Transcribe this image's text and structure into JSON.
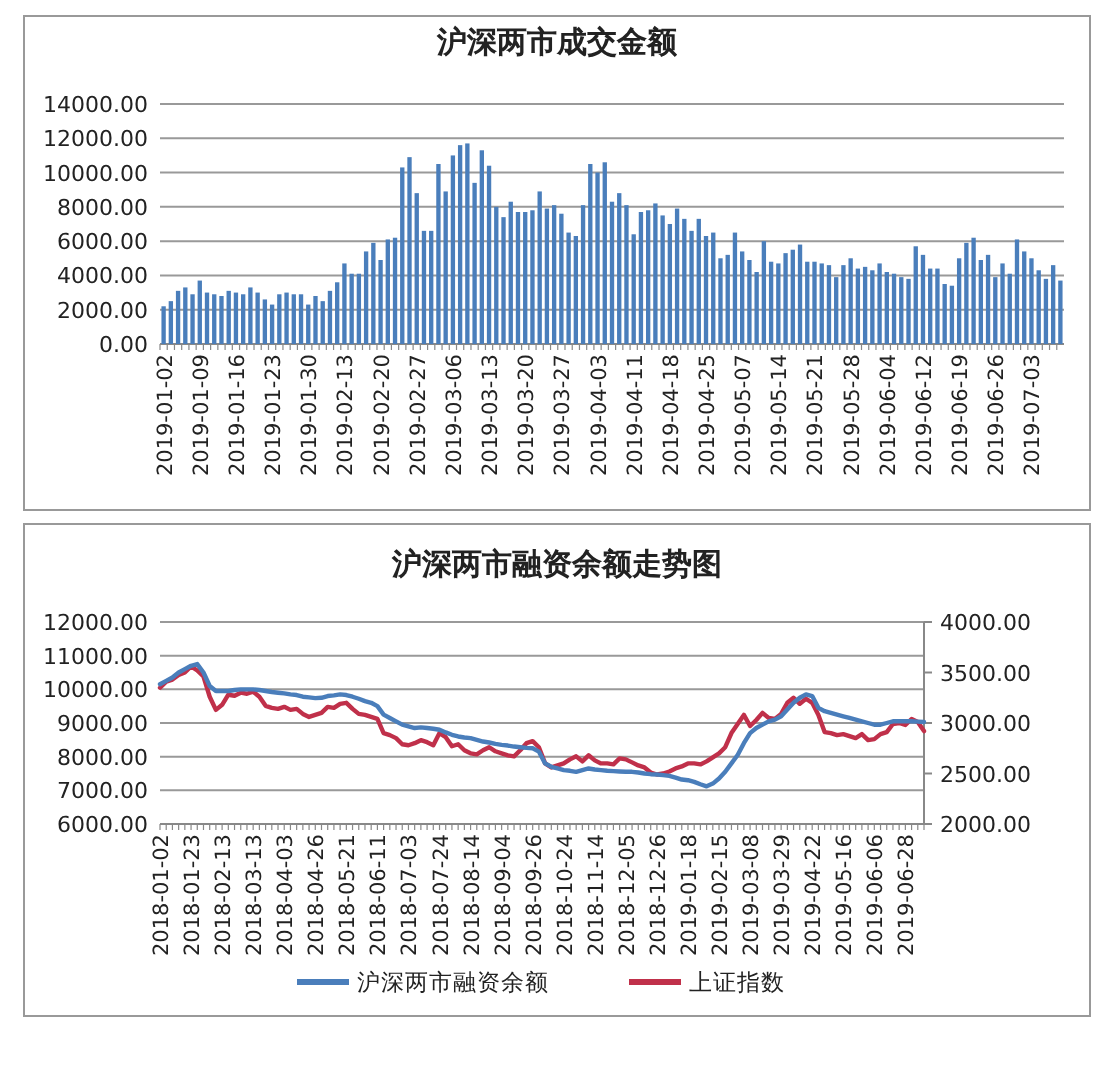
{
  "chart_data": [
    {
      "type": "bar",
      "title": "沪深两市成交金额",
      "categories": [
        "2019-01-02",
        null,
        null,
        null,
        null,
        "2019-01-09",
        null,
        null,
        null,
        null,
        "2019-01-16",
        null,
        null,
        null,
        null,
        "2019-01-23",
        null,
        null,
        null,
        null,
        "2019-01-30",
        null,
        null,
        null,
        null,
        "2019-02-13",
        null,
        null,
        null,
        null,
        "2019-02-20",
        null,
        null,
        null,
        null,
        "2019-02-27",
        null,
        null,
        null,
        null,
        "2019-03-06",
        null,
        null,
        null,
        null,
        "2019-03-13",
        null,
        null,
        null,
        null,
        "2019-03-20",
        null,
        null,
        null,
        null,
        "2019-03-27",
        null,
        null,
        null,
        null,
        "2019-04-03",
        null,
        null,
        null,
        null,
        "2019-04-11",
        null,
        null,
        null,
        null,
        "2019-04-18",
        null,
        null,
        null,
        null,
        "2019-04-25",
        null,
        null,
        null,
        null,
        "2019-05-07",
        null,
        null,
        null,
        null,
        "2019-05-14",
        null,
        null,
        null,
        null,
        "2019-05-21",
        null,
        null,
        null,
        null,
        "2019-05-28",
        null,
        null,
        null,
        null,
        "2019-06-04",
        null,
        null,
        null,
        null,
        "2019-06-12",
        null,
        null,
        null,
        null,
        "2019-06-19",
        null,
        null,
        null,
        null,
        "2019-06-26",
        null,
        null,
        null,
        null,
        "2019-07-03",
        null,
        null,
        null,
        null
      ],
      "values": [
        2200,
        2500,
        3100,
        3300,
        2900,
        3700,
        3000,
        2900,
        2800,
        3100,
        3000,
        2900,
        3300,
        3000,
        2600,
        2300,
        2900,
        3000,
        2900,
        2900,
        2300,
        2800,
        2500,
        3100,
        3600,
        4700,
        4100,
        4100,
        5400,
        5900,
        4900,
        6100,
        6200,
        10300,
        10900,
        8800,
        6600,
        6600,
        10500,
        8900,
        11000,
        11600,
        11700,
        9400,
        11300,
        10400,
        8000,
        7400,
        8300,
        7700,
        7700,
        7800,
        8900,
        7900,
        8100,
        7600,
        6500,
        6300,
        8100,
        10500,
        10000,
        10600,
        8300,
        8800,
        8100,
        6400,
        7700,
        7800,
        8200,
        7500,
        7000,
        7900,
        7300,
        6600,
        7300,
        6300,
        6500,
        5000,
        5200,
        6500,
        5400,
        4900,
        4200,
        6000,
        4800,
        4700,
        5300,
        5500,
        5800,
        4800,
        4800,
        4700,
        4600,
        3900,
        4600,
        5000,
        4400,
        4500,
        4300,
        4700,
        4200,
        4100,
        3900,
        3800,
        5700,
        5200,
        4400,
        4400,
        3500,
        3400,
        5000,
        5900,
        6200,
        4900,
        5200,
        3900,
        4700,
        4100,
        6100,
        5400,
        5000,
        4300,
        3800,
        4600,
        3700
      ],
      "color": "#4a7ebb",
      "ylim": [
        0,
        14000
      ],
      "yticks": [
        {
          "value": 0,
          "label": "0.00"
        },
        {
          "value": 2000,
          "label": "2000.00"
        },
        {
          "value": 4000,
          "label": "4000.00"
        },
        {
          "value": 6000,
          "label": "6000.00"
        },
        {
          "value": 8000,
          "label": "8000.00"
        },
        {
          "value": 10000,
          "label": "10000.00"
        },
        {
          "value": 12000,
          "label": "12000.00"
        },
        {
          "value": 14000,
          "label": "14000.00"
        }
      ],
      "grid": "y"
    },
    {
      "type": "line",
      "title": "沪深两市融资余额走势图",
      "categories": [
        "2018-01-02",
        null,
        null,
        null,
        null,
        "2018-01-23",
        null,
        null,
        null,
        null,
        "2018-02-13",
        null,
        null,
        null,
        null,
        "2018-03-13",
        null,
        null,
        null,
        null,
        "2018-04-03",
        null,
        null,
        null,
        null,
        "2018-04-26",
        null,
        null,
        null,
        null,
        "2018-05-21",
        null,
        null,
        null,
        null,
        "2018-06-11",
        null,
        null,
        null,
        null,
        "2018-07-03",
        null,
        null,
        null,
        null,
        "2018-07-24",
        null,
        null,
        null,
        null,
        "2018-08-14",
        null,
        null,
        null,
        null,
        "2018-09-04",
        null,
        null,
        null,
        null,
        "2018-09-26",
        null,
        null,
        null,
        null,
        "2018-10-24",
        null,
        null,
        null,
        null,
        "2018-11-14",
        null,
        null,
        null,
        null,
        "2018-12-05",
        null,
        null,
        null,
        null,
        "2018-12-26",
        null,
        null,
        null,
        null,
        "2019-01-18",
        null,
        null,
        null,
        null,
        "2019-02-15",
        null,
        null,
        null,
        null,
        "2019-03-08",
        null,
        null,
        null,
        null,
        "2019-03-29",
        null,
        null,
        null,
        null,
        "2019-04-22",
        null,
        null,
        null,
        null,
        "2019-05-16",
        null,
        null,
        null,
        null,
        "2019-06-06",
        null,
        null,
        null,
        null,
        "2019-06-28",
        null,
        null,
        null
      ],
      "series": [
        {
          "name": "沪深两市融资余额",
          "color": "#4a7ebb",
          "values": [
            10150,
            10250,
            10350,
            10500,
            10600,
            10700,
            10750,
            10500,
            10100,
            9950,
            9950,
            9950,
            9980,
            10000,
            10000,
            10000,
            9980,
            9950,
            9920,
            9900,
            9880,
            9850,
            9830,
            9780,
            9760,
            9740,
            9750,
            9800,
            9820,
            9850,
            9830,
            9780,
            9720,
            9650,
            9600,
            9500,
            9250,
            9150,
            9050,
            8950,
            8900,
            8850,
            8870,
            8850,
            8830,
            8800,
            8720,
            8650,
            8600,
            8570,
            8550,
            8500,
            8450,
            8420,
            8380,
            8350,
            8330,
            8300,
            8280,
            8260,
            8250,
            8150,
            7800,
            7700,
            7650,
            7600,
            7580,
            7550,
            7600,
            7650,
            7620,
            7600,
            7580,
            7570,
            7560,
            7550,
            7550,
            7530,
            7500,
            7480,
            7470,
            7450,
            7430,
            7380,
            7320,
            7300,
            7250,
            7180,
            7120,
            7200,
            7350,
            7550,
            7800,
            8050,
            8400,
            8700,
            8850,
            8950,
            9050,
            9100,
            9200,
            9400,
            9600,
            9750,
            9850,
            9800,
            9450,
            9350,
            9300,
            9250,
            9200,
            9150,
            9100,
            9050,
            9000,
            8950,
            8950,
            9000,
            9050,
            9050,
            9050,
            9050,
            9040,
            9030
          ]
        },
        {
          "name": "上证指数",
          "color": "#c0304a",
          "axis": "y2",
          "values": [
            3349,
            3410,
            3430,
            3475,
            3500,
            3560,
            3520,
            3460,
            3260,
            3130,
            3180,
            3280,
            3270,
            3300,
            3290,
            3310,
            3260,
            3170,
            3150,
            3140,
            3160,
            3130,
            3140,
            3090,
            3060,
            3080,
            3100,
            3160,
            3150,
            3190,
            3200,
            3140,
            3090,
            3080,
            3060,
            3040,
            2900,
            2880,
            2850,
            2790,
            2780,
            2800,
            2830,
            2810,
            2780,
            2900,
            2860,
            2770,
            2790,
            2730,
            2700,
            2690,
            2730,
            2760,
            2720,
            2700,
            2680,
            2670,
            2730,
            2800,
            2820,
            2760,
            2600,
            2560,
            2580,
            2600,
            2640,
            2670,
            2620,
            2680,
            2630,
            2600,
            2600,
            2590,
            2650,
            2640,
            2610,
            2580,
            2560,
            2510,
            2490,
            2500,
            2520,
            2550,
            2570,
            2600,
            2600,
            2590,
            2620,
            2660,
            2700,
            2760,
            2900,
            2990,
            3080,
            2970,
            3030,
            3100,
            3050,
            3040,
            3090,
            3200,
            3250,
            3190,
            3240,
            3200,
            3080,
            2910,
            2900,
            2880,
            2890,
            2870,
            2850,
            2890,
            2830,
            2840,
            2890,
            2910,
            2990,
            3000,
            2980,
            3040,
            3010,
            2920
          ]
        }
      ],
      "ylim": [
        6000,
        12000
      ],
      "yticks": [
        {
          "value": 6000,
          "label": "6000.00"
        },
        {
          "value": 7000,
          "label": "7000.00"
        },
        {
          "value": 8000,
          "label": "8000.00"
        },
        {
          "value": 9000,
          "label": "9000.00"
        },
        {
          "value": 10000,
          "label": "10000.00"
        },
        {
          "value": 11000,
          "label": "11000.00"
        },
        {
          "value": 12000,
          "label": "12000.00"
        }
      ],
      "y2lim": [
        2000,
        4000
      ],
      "y2ticks": [
        {
          "value": 2000,
          "label": "2000.00"
        },
        {
          "value": 2500,
          "label": "2500.00"
        },
        {
          "value": 3000,
          "label": "3000.00"
        },
        {
          "value": 3500,
          "label": "3500.00"
        },
        {
          "value": 4000,
          "label": "4000.00"
        }
      ],
      "grid": "y",
      "legend": "bottom",
      "line_style": "solid"
    }
  ]
}
